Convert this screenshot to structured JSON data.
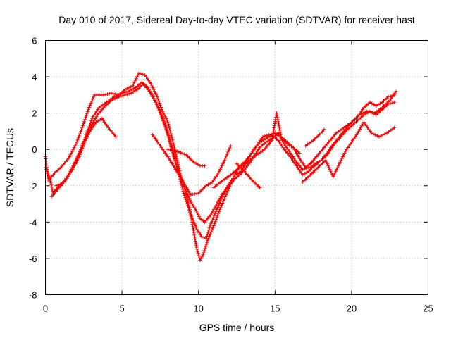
{
  "chart_data": {
    "type": "scatter",
    "title": "Day 010 of 2017, Sidereal Day-to-day VTEC variation (SDTVAR) for receiver hast",
    "xlabel": "GPS time / hours",
    "ylabel": "SDTVAR / TECUs",
    "xlim": [
      0,
      25
    ],
    "ylim": [
      -8,
      6
    ],
    "xticks": [
      "0",
      "5",
      "10",
      "15",
      "20",
      "25"
    ],
    "yticks": [
      "-8",
      "-6",
      "-4",
      "-2",
      "0",
      "2",
      "4",
      "6"
    ],
    "grid": true,
    "marker": "+",
    "color": "#ff0000",
    "series": [
      {
        "x": [
          0.0,
          0.3,
          0.6,
          1.0,
          1.5,
          2.0,
          2.4,
          2.8,
          3.2,
          3.8,
          4.3,
          4.8,
          5.2,
          5.7,
          6.1,
          6.5,
          6.9,
          7.3,
          7.6,
          8.0,
          8.4,
          8.8,
          9.1,
          9.4,
          9.7,
          9.9,
          10.1,
          10.3,
          10.6,
          11.0,
          11.4,
          11.8,
          12.2,
          12.6,
          13.0,
          13.4,
          13.8,
          14.2,
          14.6,
          15.0,
          15.4,
          15.8,
          16.2,
          16.6,
          17.0,
          17.4,
          17.8,
          18.2,
          18.6,
          19.0,
          19.5,
          20.0,
          20.5,
          21.0,
          21.5,
          22.0,
          22.5,
          22.9
        ],
        "y": [
          -1.0,
          -1.6,
          -1.3,
          -1.0,
          -0.5,
          0.3,
          1.2,
          2.2,
          3.0,
          3.0,
          3.1,
          3.0,
          3.3,
          3.5,
          4.2,
          4.1,
          3.6,
          2.9,
          2.2,
          1.5,
          0.2,
          -1.3,
          -2.2,
          -3.2,
          -4.6,
          -5.5,
          -6.1,
          -5.8,
          -5.0,
          -4.2,
          -3.3,
          -2.5,
          -1.7,
          -1.0,
          -0.7,
          -0.3,
          0.2,
          0.7,
          0.8,
          0.9,
          0.7,
          0.4,
          0.1,
          -0.5,
          -1.0,
          -0.7,
          -0.3,
          0.1,
          0.5,
          0.9,
          1.2,
          1.5,
          1.9,
          2.1,
          2.0,
          2.3,
          2.7,
          3.2
        ]
      },
      {
        "x": [
          0.2,
          0.5,
          0.9,
          1.4,
          1.9,
          2.3,
          2.7,
          3.1,
          3.5,
          4.0,
          4.5,
          5.0,
          5.4,
          5.9,
          6.3,
          6.7,
          7.1,
          7.5,
          7.9,
          8.3,
          8.7,
          9.0,
          9.3,
          9.6,
          9.9,
          10.2,
          10.5,
          10.8,
          11.2,
          11.6,
          12.0,
          12.4,
          12.8,
          13.2,
          13.6,
          14.0,
          14.4,
          14.8,
          15.2,
          15.6,
          16.0,
          16.4,
          16.8,
          17.2,
          17.6,
          18.0,
          18.4,
          18.8,
          19.2,
          19.6,
          20.0,
          20.4,
          20.8,
          21.2,
          21.6,
          22.0,
          22.4,
          22.8
        ],
        "y": [
          -1.3,
          -2.4,
          -2.0,
          -1.6,
          -0.8,
          0.0,
          0.9,
          1.8,
          2.3,
          2.6,
          2.9,
          3.1,
          3.2,
          3.4,
          3.7,
          3.4,
          2.8,
          2.1,
          1.2,
          0.0,
          -1.3,
          -2.3,
          -3.1,
          -3.8,
          -4.4,
          -4.8,
          -4.9,
          -4.1,
          -3.3,
          -2.5,
          -1.9,
          -1.4,
          -1.2,
          -0.6,
          0.0,
          0.4,
          0.6,
          0.8,
          0.5,
          0.0,
          -0.4,
          -0.9,
          -1.4,
          -1.2,
          -0.8,
          -0.6,
          -0.3,
          0.2,
          0.7,
          1.1,
          1.5,
          1.8,
          2.3,
          2.6,
          2.4,
          2.6,
          2.9,
          3.0
        ]
      },
      {
        "x": [
          0.4,
          0.8,
          1.2,
          1.7,
          2.2,
          2.6,
          3.0,
          3.4,
          3.8,
          4.3,
          4.8,
          5.2,
          5.6,
          6.0,
          6.4,
          6.8,
          7.2,
          7.6,
          8.0,
          8.4,
          8.8,
          9.2,
          9.5,
          9.8,
          10.1,
          10.4,
          10.8,
          11.2,
          11.6,
          12.0,
          12.4,
          12.8,
          13.2,
          13.6,
          14.0,
          14.4,
          14.8,
          15.2,
          15.6,
          16.0,
          16.4,
          16.8,
          17.2,
          17.6,
          18.0,
          18.4,
          18.8,
          19.2,
          19.6,
          20.0,
          20.4,
          20.8,
          21.2,
          21.6,
          22.0,
          22.4,
          22.8
        ],
        "y": [
          -2.6,
          -2.2,
          -1.8,
          -1.2,
          -0.4,
          0.5,
          1.3,
          1.9,
          2.3,
          2.7,
          2.9,
          3.0,
          3.1,
          3.3,
          3.6,
          3.2,
          2.6,
          1.8,
          0.8,
          -0.4,
          -1.5,
          -2.3,
          -2.9,
          -3.3,
          -3.8,
          -4.0,
          -3.6,
          -3.0,
          -2.4,
          -2.0,
          -1.6,
          -1.3,
          -0.9,
          -0.4,
          0.1,
          0.4,
          0.6,
          0.9,
          0.3,
          -0.2,
          -0.7,
          -1.1,
          -1.0,
          -0.9,
          -0.6,
          -0.2,
          0.3,
          0.6,
          1.0,
          1.3,
          1.6,
          1.9,
          2.1,
          1.9,
          2.2,
          2.5,
          2.6
        ]
      },
      {
        "x": [
          0.7,
          1.1,
          1.5,
          2.0,
          2.5,
          2.9,
          3.3,
          3.7,
          4.1,
          4.6
        ],
        "y": [
          -2.0,
          -1.9,
          -1.4,
          -0.6,
          0.3,
          1.0,
          1.5,
          1.7,
          1.2,
          0.7
        ]
      },
      {
        "x": [
          7.0,
          7.5,
          8.0,
          8.5,
          9.0,
          9.5,
          10.0,
          10.5,
          10.9,
          11.3,
          11.7,
          12.1
        ],
        "y": [
          0.8,
          0.2,
          -0.4,
          -1.1,
          -1.8,
          -2.5,
          -2.4,
          -2.0,
          -1.8,
          -1.3,
          -0.6,
          0.2
        ]
      },
      {
        "x": [
          8.0,
          8.6,
          9.2,
          9.7,
          10.1,
          10.4
        ],
        "y": [
          0.0,
          -0.1,
          -0.3,
          -0.7,
          -0.9,
          -0.9
        ]
      },
      {
        "x": [
          11.0,
          11.6,
          12.1,
          12.7,
          13.2,
          13.8,
          14.3,
          14.8,
          15.1,
          15.4,
          15.8,
          16.2,
          16.6
        ],
        "y": [
          -2.1,
          -1.7,
          -1.4,
          -1.0,
          -0.7,
          -0.3,
          0.0,
          0.5,
          2.0,
          0.7,
          0.3,
          0.1,
          -0.2
        ]
      },
      {
        "x": [
          16.8,
          17.3,
          17.8,
          18.3,
          18.8,
          19.2,
          19.6,
          20.0,
          20.4,
          20.8,
          21.3,
          21.8,
          22.3,
          22.8
        ],
        "y": [
          -1.8,
          -1.4,
          -1.0,
          -0.6,
          -1.5,
          -0.8,
          -0.1,
          0.4,
          0.9,
          1.5,
          0.9,
          0.7,
          0.9,
          1.2
        ]
      },
      {
        "x": [
          12.5,
          13.0,
          13.5,
          14.0
        ],
        "y": [
          -0.8,
          -1.2,
          -1.7,
          -2.1
        ]
      },
      {
        "x": [
          17.0,
          17.5,
          18.0,
          18.2
        ],
        "y": [
          0.2,
          0.5,
          0.9,
          1.1
        ]
      },
      {
        "x": [
          0.0,
          0.1,
          0.2
        ],
        "y": [
          -0.4,
          -1.1,
          -1.7
        ]
      }
    ]
  }
}
